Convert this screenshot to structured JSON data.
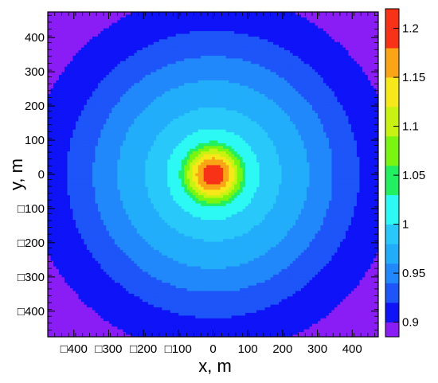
{
  "chart_data": {
    "type": "heatmap",
    "subtype": "filled-contour",
    "title": "",
    "xlabel": "x, m",
    "ylabel": "y, m",
    "xlim": [
      -475,
      475
    ],
    "ylim": [
      -475,
      475
    ],
    "x_ticks": [
      -400,
      -300,
      -200,
      -100,
      0,
      100,
      200,
      300,
      400
    ],
    "x_tick_labels": [
      "□400",
      "□300",
      "□200",
      "□100",
      "0",
      "100",
      "200",
      "300",
      "400"
    ],
    "y_ticks": [
      400,
      300,
      200,
      100,
      0,
      -100,
      -200,
      -300,
      -400
    ],
    "y_tick_labels": [
      "400",
      "300",
      "200",
      "100",
      "0",
      "□100",
      "□200",
      "□300",
      "□400"
    ],
    "colorbar": {
      "range": [
        0.885,
        1.22
      ],
      "ticks": [
        0.9,
        0.95,
        1.0,
        1.05,
        1.1,
        1.15,
        1.2
      ],
      "tick_labels": [
        "0.9",
        "0.95",
        "1",
        "1.05",
        "1.1",
        "1.15",
        "1.2"
      ]
    },
    "contour_levels": [
      {
        "from": 0.885,
        "to": 0.9,
        "color": "#8a1cf5"
      },
      {
        "from": 0.9,
        "to": 0.92,
        "color": "#0f13f7"
      },
      {
        "from": 0.92,
        "to": 0.94,
        "color": "#1d55f9"
      },
      {
        "from": 0.94,
        "to": 0.96,
        "color": "#2088fb"
      },
      {
        "from": 0.96,
        "to": 0.98,
        "color": "#22adfb"
      },
      {
        "from": 0.98,
        "to": 1.0,
        "color": "#29c8fb"
      },
      {
        "from": 1.0,
        "to": 1.03,
        "color": "#2cf8f4"
      },
      {
        "from": 1.03,
        "to": 1.06,
        "color": "#22f060"
      },
      {
        "from": 1.06,
        "to": 1.09,
        "color": "#7af511"
      },
      {
        "from": 1.09,
        "to": 1.12,
        "color": "#c8f312"
      },
      {
        "from": 1.12,
        "to": 1.15,
        "color": "#f7e81a"
      },
      {
        "from": 1.15,
        "to": 1.18,
        "color": "#f9a516"
      },
      {
        "from": 1.18,
        "to": 1.22,
        "color": "#f83217"
      }
    ],
    "field": {
      "description_values": "radially symmetric maximum at origin",
      "center": [
        0,
        0
      ],
      "peak_value": 1.22,
      "radial_profile": [
        {
          "r": 0,
          "value": 1.22
        },
        {
          "r": 25,
          "value": 1.19
        },
        {
          "r": 45,
          "value": 1.155
        },
        {
          "r": 60,
          "value": 1.12
        },
        {
          "r": 80,
          "value": 1.07
        },
        {
          "r": 100,
          "value": 1.02
        },
        {
          "r": 150,
          "value": 0.99
        },
        {
          "r": 240,
          "value": 0.97
        },
        {
          "r": 310,
          "value": 0.95
        },
        {
          "r": 380,
          "value": 0.93
        },
        {
          "r": 460,
          "value": 0.91
        },
        {
          "r": 560,
          "value": 0.895
        },
        {
          "r": 700,
          "value": 0.885
        }
      ]
    }
  }
}
